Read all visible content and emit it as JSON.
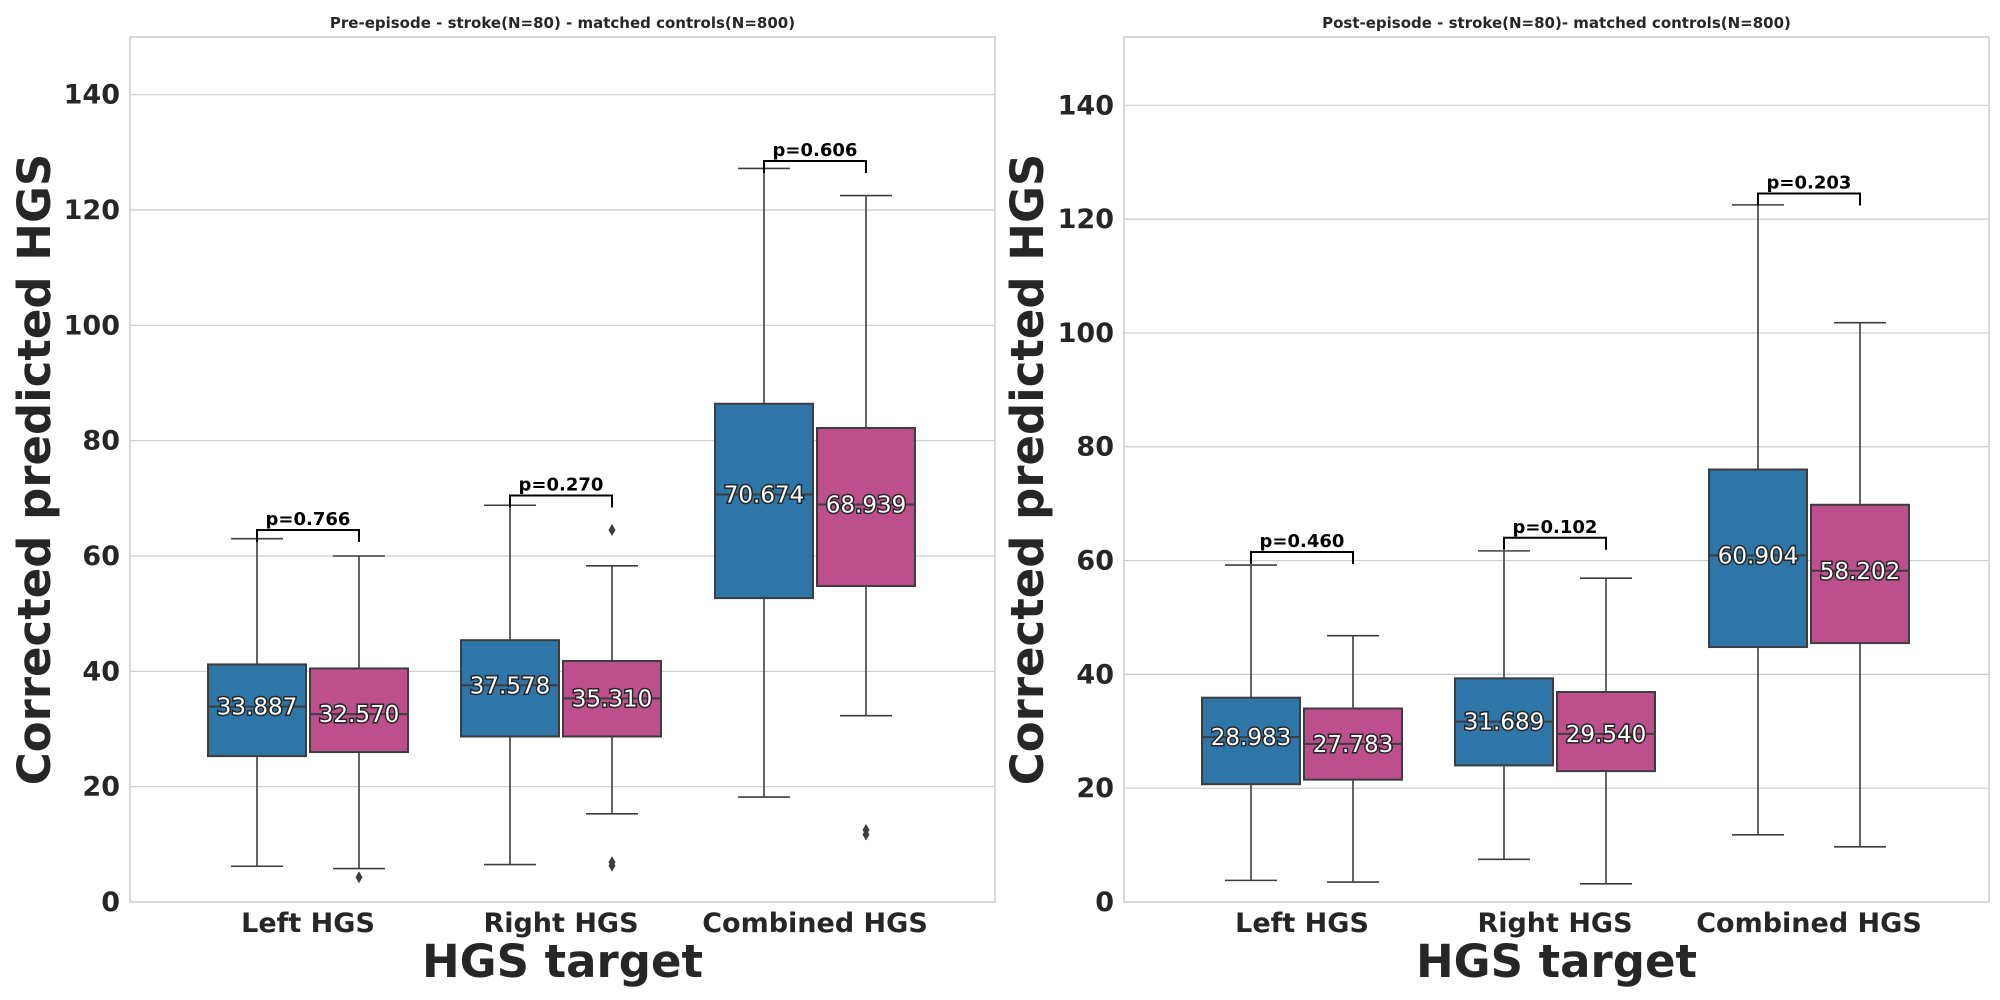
{
  "chart_data": [
    {
      "type": "box",
      "title": "Pre-episode - stroke(N=80) - matched controls(N=800)",
      "xlabel": "HGS target",
      "ylabel": "Corrected predicted HGS",
      "ylim": [
        0,
        150
      ],
      "yticks": [
        0,
        20,
        40,
        60,
        80,
        100,
        120,
        140
      ],
      "categories": [
        "Left HGS",
        "Right HGS",
        "Combined HGS"
      ],
      "grid": true,
      "colors": {
        "stroke": "#2e75a8",
        "control": "#bd4f8c"
      },
      "series": [
        {
          "group": "stroke",
          "boxes": [
            {
              "whisker_low": 6.2,
              "q1": 25.3,
              "median": 33.887,
              "median_label": "33.887",
              "q3": 41.2,
              "whisker_high": 63.0,
              "outliers": []
            },
            {
              "whisker_low": 6.5,
              "q1": 28.7,
              "median": 37.578,
              "median_label": "37.578",
              "q3": 45.4,
              "whisker_high": 68.8,
              "outliers": []
            },
            {
              "whisker_low": 18.2,
              "q1": 52.7,
              "median": 70.674,
              "median_label": "70.674",
              "q3": 86.4,
              "whisker_high": 127.2,
              "outliers": []
            }
          ]
        },
        {
          "group": "control",
          "boxes": [
            {
              "whisker_low": 5.8,
              "q1": 26.0,
              "median": 32.57,
              "median_label": "32.570",
              "q3": 40.5,
              "whisker_high": 60.0,
              "outliers": [
                4.3
              ]
            },
            {
              "whisker_low": 15.3,
              "q1": 28.7,
              "median": 35.31,
              "median_label": "35.310",
              "q3": 41.8,
              "whisker_high": 58.3,
              "outliers": [
                64.5,
                6.9,
                6.3
              ]
            },
            {
              "whisker_low": 32.3,
              "q1": 54.8,
              "median": 68.939,
              "median_label": "68.939",
              "q3": 82.2,
              "whisker_high": 122.5,
              "outliers": [
                12.5,
                11.7
              ]
            }
          ]
        }
      ],
      "pvalues": [
        {
          "label": "p=0.766",
          "y": 64.5
        },
        {
          "label": "p=0.270",
          "y": 70.5
        },
        {
          "label": "p=0.606",
          "y": 128.5
        }
      ]
    },
    {
      "type": "box",
      "title": "Post-episode - stroke(N=80)- matched controls(N=800)",
      "xlabel": "HGS target",
      "ylabel": "Corrected predicted HGS",
      "ylim": [
        0,
        152
      ],
      "yticks": [
        0,
        20,
        40,
        60,
        80,
        100,
        120,
        140
      ],
      "categories": [
        "Left HGS",
        "Right HGS",
        "Combined HGS"
      ],
      "grid": true,
      "colors": {
        "stroke": "#2e75a8",
        "control": "#bd4f8c"
      },
      "series": [
        {
          "group": "stroke",
          "boxes": [
            {
              "whisker_low": 3.8,
              "q1": 20.7,
              "median": 28.983,
              "median_label": "28.983",
              "q3": 35.9,
              "whisker_high": 59.2,
              "outliers": []
            },
            {
              "whisker_low": 7.5,
              "q1": 24.0,
              "median": 31.689,
              "median_label": "31.689",
              "q3": 39.3,
              "whisker_high": 61.7,
              "outliers": []
            },
            {
              "whisker_low": 11.8,
              "q1": 44.8,
              "median": 60.904,
              "median_label": "60.904",
              "q3": 76.0,
              "whisker_high": 122.5,
              "outliers": []
            }
          ]
        },
        {
          "group": "control",
          "boxes": [
            {
              "whisker_low": 3.5,
              "q1": 21.5,
              "median": 27.783,
              "median_label": "27.783",
              "q3": 34.0,
              "whisker_high": 46.8,
              "outliers": []
            },
            {
              "whisker_low": 3.2,
              "q1": 23.0,
              "median": 29.54,
              "median_label": "29.540",
              "q3": 36.9,
              "whisker_high": 56.9,
              "outliers": []
            },
            {
              "whisker_low": 9.7,
              "q1": 45.5,
              "median": 58.202,
              "median_label": "58.202",
              "q3": 69.8,
              "whisker_high": 101.8,
              "outliers": []
            }
          ]
        }
      ],
      "pvalues": [
        {
          "label": "p=0.460",
          "y": 61.5
        },
        {
          "label": "p=0.102",
          "y": 64.0
        },
        {
          "label": "p=0.203",
          "y": 124.5
        }
      ]
    }
  ]
}
